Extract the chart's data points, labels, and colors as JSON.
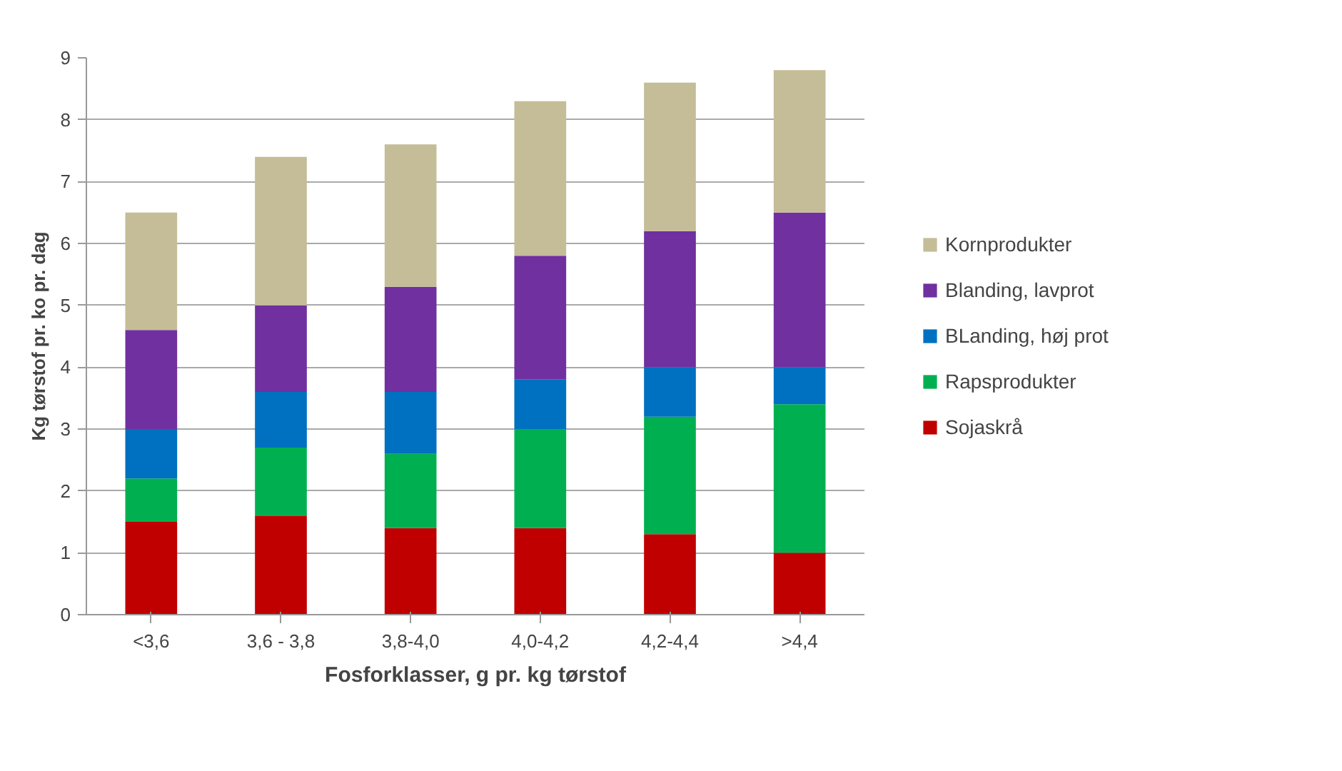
{
  "chart_data": {
    "type": "bar",
    "stacked": true,
    "xlabel": "Fosforklasser, g pr. kg tørstof",
    "ylabel": "Kg tørstof pr. ko pr. dag",
    "categories": [
      "<3,6",
      "3,6 - 3,8",
      "3,8-4,0",
      "4,0-4,2",
      "4,2-4,4",
      ">4,4"
    ],
    "series": [
      {
        "name": "Sojaskrå",
        "color": "#c00000",
        "values": [
          1.5,
          1.6,
          1.4,
          1.4,
          1.3,
          1.0
        ]
      },
      {
        "name": "Rapsprodukter",
        "color": "#00b050",
        "values": [
          0.7,
          1.1,
          1.2,
          1.6,
          1.9,
          2.4
        ]
      },
      {
        "name": "BLanding, høj prot",
        "color": "#0070c0",
        "values": [
          0.8,
          0.9,
          1.0,
          0.8,
          0.8,
          0.6
        ]
      },
      {
        "name": "Blanding, lavprot",
        "color": "#7030a0",
        "values": [
          1.6,
          1.4,
          1.7,
          2.0,
          2.2,
          2.5
        ]
      },
      {
        "name": "Kornprodukter",
        "color": "#c4bd97",
        "values": [
          1.9,
          2.4,
          2.3,
          2.5,
          2.4,
          2.3
        ]
      }
    ],
    "ylim": [
      0,
      9
    ],
    "yticks": [
      0,
      1,
      2,
      3,
      4,
      5,
      6,
      7,
      8,
      9
    ],
    "grid": "y",
    "legend": "right"
  }
}
